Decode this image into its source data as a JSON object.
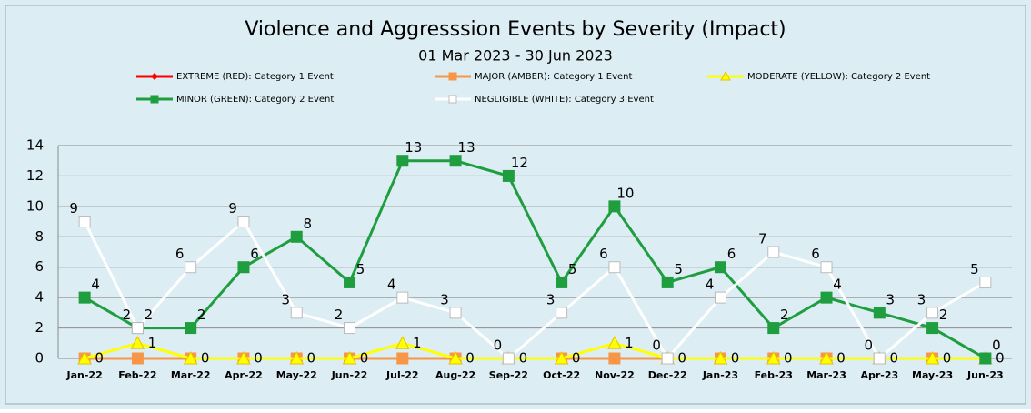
{
  "chart_data": {
    "type": "line",
    "title": "Violence and Aggresssion Events by Severity (Impact)",
    "subtitle": "01  Mar 2023 - 30 Jun 2023",
    "categories": [
      "Jan-22",
      "Feb-22",
      "Mar-22",
      "Apr-22",
      "May-22",
      "Jun-22",
      "Jul-22",
      "Aug-22",
      "Sep-22",
      "Oct-22",
      "Nov-22",
      "Dec-22",
      "Jan-23",
      "Feb-23",
      "Mar-23",
      "Apr-23",
      "May-23",
      "Jun-23"
    ],
    "ylim": [
      0,
      14
    ],
    "yticks": [
      0,
      2,
      4,
      6,
      8,
      10,
      12,
      14
    ],
    "grid": true,
    "series": [
      {
        "name": "EXTREME (RED): Category 1 Event",
        "color": "#ff0000",
        "marker": "diamond",
        "values": [
          0,
          0,
          0,
          0,
          0,
          0,
          0,
          0,
          0,
          0,
          0,
          0,
          0,
          0,
          0,
          0,
          0,
          0
        ]
      },
      {
        "name": "MAJOR (AMBER): Category 1 Event",
        "color": "#f79646",
        "marker": "square",
        "values": [
          0,
          0,
          0,
          0,
          0,
          0,
          0,
          0,
          0,
          0,
          0,
          0,
          0,
          0,
          0,
          0,
          0,
          0
        ]
      },
      {
        "name": "MODERATE (YELLOW): Category 2 Event",
        "color": "#ffff00",
        "marker": "triangle",
        "data_labels": true,
        "values": [
          0,
          1,
          0,
          0,
          0,
          0,
          1,
          0,
          0,
          0,
          1,
          0,
          0,
          0,
          0,
          0,
          0,
          0
        ]
      },
      {
        "name": "MINOR (GREEN): Category 2 Event",
        "color": "#1e9e3e",
        "marker": "square",
        "data_labels": true,
        "values": [
          4,
          2,
          2,
          6,
          8,
          5,
          13,
          13,
          12,
          5,
          10,
          5,
          6,
          2,
          4,
          3,
          2,
          0
        ]
      },
      {
        "name": "NEGLIGIBLE (WHITE): Category 3 Event",
        "color": "#ffffff",
        "marker": "square",
        "data_labels": true,
        "values": [
          9,
          2,
          6,
          9,
          3,
          2,
          4,
          3,
          0,
          3,
          6,
          0,
          4,
          7,
          6,
          0,
          3,
          5
        ]
      }
    ]
  }
}
